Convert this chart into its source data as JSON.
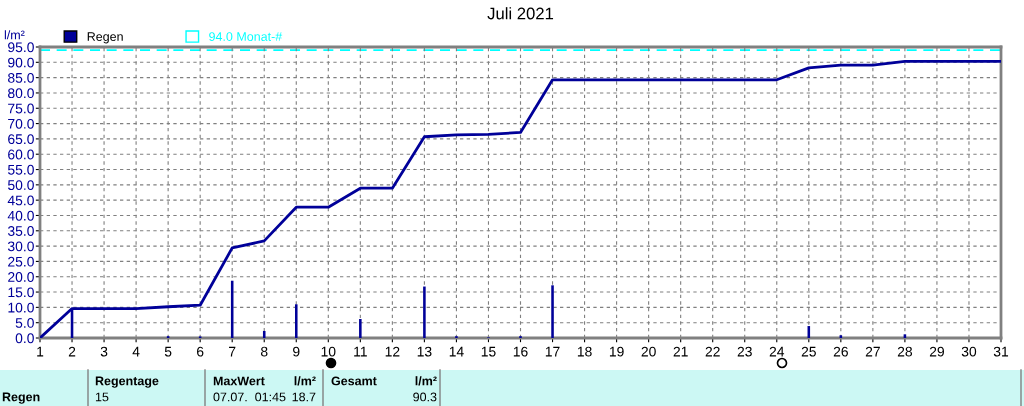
{
  "chart_data": {
    "type": "line",
    "title": "Juli 2021",
    "ylabel": "l/m²",
    "x": [
      1,
      2,
      3,
      4,
      5,
      6,
      7,
      8,
      9,
      10,
      11,
      12,
      13,
      14,
      15,
      16,
      17,
      18,
      19,
      20,
      21,
      22,
      23,
      24,
      25,
      26,
      27,
      28,
      29,
      30,
      31
    ],
    "series": [
      {
        "color": "#000099",
        "values": [
          0,
          9.6,
          9.6,
          9.6,
          10.2,
          10.7,
          29.4,
          31.7,
          42.7,
          42.7,
          48.9,
          48.9,
          65.7,
          66.3,
          66.5,
          67.1,
          84.3,
          84.3,
          84.3,
          84.3,
          84.3,
          84.3,
          84.3,
          84.3,
          88.2,
          89.1,
          89.1,
          90.3,
          90.3,
          90.3,
          90.3
        ]
      },
      {
        "type": "bar",
        "name": "Regen",
        "color": "#000099",
        "x": [
          2,
          5,
          6,
          7,
          8,
          9,
          11,
          13,
          14,
          15,
          16,
          17,
          25,
          26,
          28
        ],
        "values": [
          9.6,
          0.6,
          0.5,
          18.7,
          2.3,
          11.0,
          6.2,
          16.8,
          0.6,
          0.2,
          0.6,
          17.2,
          3.9,
          0.9,
          1.2
        ]
      }
    ],
    "ref_lines": [
      {
        "axis": "y",
        "value": 94.0,
        "label": "94.0 Monat-#",
        "color": "#00ffff",
        "line_style": "dashed"
      }
    ],
    "xlim": [
      1,
      31
    ],
    "xticks": [
      1,
      2,
      3,
      4,
      5,
      6,
      7,
      8,
      9,
      10,
      11,
      12,
      13,
      14,
      15,
      16,
      17,
      18,
      19,
      20,
      21,
      22,
      23,
      24,
      25,
      26,
      27,
      28,
      29,
      30,
      31
    ],
    "ylim": [
      0,
      95
    ],
    "yticks": [
      {
        "value": 0,
        "label": "0.0"
      },
      {
        "value": 5,
        "label": "5.0"
      },
      {
        "value": 10,
        "label": "10.0"
      },
      {
        "value": 15,
        "label": "15.0"
      },
      {
        "value": 20,
        "label": "20.0"
      },
      {
        "value": 25,
        "label": "25.0"
      },
      {
        "value": 30,
        "label": "30.0"
      },
      {
        "value": 35,
        "label": "35.0"
      },
      {
        "value": 40,
        "label": "40.0"
      },
      {
        "value": 45,
        "label": "45.0"
      },
      {
        "value": 50,
        "label": "50.0"
      },
      {
        "value": 55,
        "label": "55.0"
      },
      {
        "value": 60,
        "label": "60.0"
      },
      {
        "value": 65,
        "label": "65.0"
      },
      {
        "value": 70,
        "label": "70.0"
      },
      {
        "value": 75,
        "label": "75.0"
      },
      {
        "value": 80,
        "label": "80.0"
      },
      {
        "value": 85,
        "label": "85.0"
      },
      {
        "value": 90,
        "label": "90.0"
      },
      {
        "value": 95,
        "label": "95.0"
      }
    ],
    "grid": true,
    "legend": "top left",
    "marker": "none",
    "line_style": "solid",
    "annotations": [
      "Regen",
      "Regentage",
      "15",
      "MaxWert",
      "l/m²",
      "07.07.  01:45",
      "18.7",
      "Gesamt",
      "l/m²",
      "90.3"
    ]
  }
}
